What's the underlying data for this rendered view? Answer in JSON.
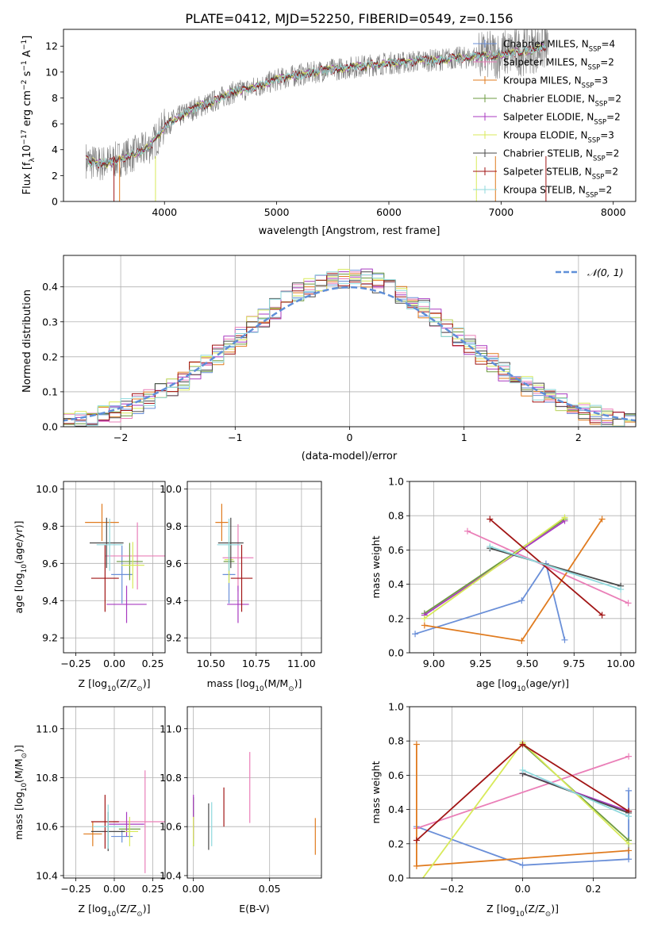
{
  "figure": {
    "title": "PLATE=0412, MJD=52250, FIBERID=0549, z=0.156"
  },
  "colors": [
    "#6a8fd8",
    "#ea7fb8",
    "#e07b1f",
    "#6e9b40",
    "#a83ac0",
    "#d8ea5a",
    "#4a4a4a",
    "#a11515",
    "#8fd9dd"
  ],
  "chart_data": [
    {
      "id": "spectrum",
      "type": "line",
      "xlabel": "wavelength [Angstrom, rest frame]",
      "ylabel": "Flux [f",
      "ylabel_sub": "λ",
      "ylabel_mid": "10",
      "ylabel_exp1": "−17",
      "ylabel_mid2": " erg cm",
      "ylabel_exp2": "−2",
      "ylabel_mid3": " s",
      "ylabel_exp3": "−1",
      "ylabel_mid4": " A",
      "ylabel_exp4": "−1",
      "ylabel_end": "]",
      "xlim": [
        3100,
        8200
      ],
      "ylim": [
        0,
        13.3
      ],
      "xticks": [
        "4000",
        "5000",
        "6000",
        "7000",
        "8000"
      ],
      "xtick_values": [
        4000,
        5000,
        6000,
        7000,
        8000
      ],
      "yticks": [
        "0",
        "2",
        "4",
        "6",
        "8",
        "10",
        "12"
      ],
      "ytick_values": [
        0,
        2,
        4,
        6,
        8,
        10,
        12
      ],
      "continuum": {
        "x": [
          3300,
          3400,
          3500,
          3600,
          3700,
          3800,
          3900,
          4000,
          4100,
          4200,
          4300,
          4400,
          4500,
          4600,
          4700,
          4800,
          4900,
          5000,
          5100,
          5200,
          5300,
          5400,
          5500,
          5600,
          5700,
          5800,
          5900,
          6000,
          6100,
          6200,
          6300,
          6400,
          6500,
          6600,
          6700,
          6800,
          6900,
          7000,
          7100,
          7200,
          7300,
          7400
        ],
        "y": [
          3.2,
          2.9,
          3.0,
          3.3,
          3.6,
          3.9,
          4.5,
          5.8,
          6.4,
          6.9,
          7.3,
          7.6,
          8.0,
          8.4,
          8.6,
          8.8,
          9.1,
          9.4,
          9.6,
          9.8,
          9.9,
          10.1,
          10.2,
          10.3,
          10.4,
          10.5,
          10.6,
          10.7,
          10.7,
          10.8,
          10.9,
          10.9,
          11.0,
          11.1,
          11.1,
          11.2,
          11.3,
          11.4,
          11.5,
          11.6,
          11.8,
          12.0
        ]
      },
      "series": [
        {
          "name": "Chabrier MILES, N",
          "sub": "SSP",
          "count": "=4"
        },
        {
          "name": "Salpeter MILES, N",
          "sub": "SSP",
          "count": "=2"
        },
        {
          "name": "Kroupa MILES, N",
          "sub": "SSP",
          "count": "=3"
        },
        {
          "name": "Chabrier ELODIE, N",
          "sub": "SSP",
          "count": "=2"
        },
        {
          "name": "Salpeter ELODIE, N",
          "sub": "SSP",
          "count": "=2"
        },
        {
          "name": "Kroupa ELODIE, N",
          "sub": "SSP",
          "count": "=3"
        },
        {
          "name": "Chabrier STELIB, N",
          "sub": "SSP",
          "count": "=2"
        },
        {
          "name": "Salpeter STELIB, N",
          "sub": "SSP",
          "count": "=2"
        },
        {
          "name": "Kroupa STELIB, N",
          "sub": "SSP",
          "count": "=2"
        }
      ],
      "legend_position": "upper-right"
    },
    {
      "id": "residuals",
      "type": "step-histogram",
      "xlabel": "(data-model)/error",
      "ylabel": "Normed distribution",
      "xlim": [
        -2.5,
        2.5
      ],
      "ylim": [
        0,
        0.49
      ],
      "xticks": [
        "−2",
        "−1",
        "0",
        "1",
        "2"
      ],
      "xtick_values": [
        -2,
        -1,
        0,
        1,
        2
      ],
      "yticks": [
        "0.0",
        "0.1",
        "0.2",
        "0.3",
        "0.4"
      ],
      "ytick_values": [
        0,
        0.1,
        0.2,
        0.3,
        0.4
      ],
      "bin_width": 0.1,
      "normal_label": "𝒩(0, 1)",
      "grid": true,
      "legend_position": "upper-right"
    },
    {
      "id": "age-vs-Z",
      "type": "errorbar",
      "xlabel": "Z [log",
      "xlabel_sub": "10",
      "xlabel_mid": "(Z/Z",
      "xlabel_sub2": "⊙",
      "xlabel_end": ")]",
      "ylabel": "age  [log",
      "ylabel_sub": "10",
      "ylabel_end": "(age/yr)]",
      "xlim": [
        -0.33,
        0.33
      ],
      "ylim": [
        9.12,
        10.04
      ],
      "xticks": [
        "−0.25",
        "0.00",
        "0.25"
      ],
      "xtick_values": [
        -0.25,
        0,
        0.25
      ],
      "yticks": [
        "9.2",
        "9.4",
        "9.6",
        "9.8",
        "10.0"
      ],
      "ytick_values": [
        9.2,
        9.4,
        9.6,
        9.8,
        10.0
      ],
      "points": [
        {
          "x": 0.05,
          "y": 9.54,
          "xerr": 0.14,
          "yerr": 0.31
        },
        {
          "x": 0.15,
          "y": 9.64,
          "xerr": 0.42,
          "yerr": 0.36
        },
        {
          "x": -0.08,
          "y": 9.82,
          "xerr": 0.22,
          "yerr": 0.2
        },
        {
          "x": 0.1,
          "y": 9.61,
          "xerr": 0.17,
          "yerr": 0.2
        },
        {
          "x": 0.08,
          "y": 9.38,
          "xerr": 0.26,
          "yerr": 0.2
        },
        {
          "x": 0.12,
          "y": 9.59,
          "xerr": 0.15,
          "yerr": 0.25
        },
        {
          "x": -0.05,
          "y": 9.71,
          "xerr": 0.22,
          "yerr": 0.27
        },
        {
          "x": -0.06,
          "y": 9.52,
          "xerr": 0.18,
          "yerr": 0.36
        },
        {
          "x": -0.03,
          "y": 9.7,
          "xerr": 0.17,
          "yerr": 0.28
        }
      ],
      "grid": true
    },
    {
      "id": "age-vs-mass",
      "type": "errorbar",
      "xlabel": "mass [log",
      "xlabel_sub": "10",
      "xlabel_mid": "(M/M",
      "xlabel_sub2": "⊙",
      "xlabel_end": ")]",
      "xlim": [
        10.37,
        11.11
      ],
      "ylim": [
        9.12,
        10.04
      ],
      "xticks": [
        "10.50",
        "10.75",
        "11.00"
      ],
      "xtick_values": [
        10.5,
        10.75,
        11.0
      ],
      "yticks": [
        "9.2",
        "9.4",
        "9.6",
        "9.8",
        "10.0"
      ],
      "ytick_values": [
        9.2,
        9.4,
        9.6,
        9.8,
        10.0
      ],
      "points": [
        {
          "x": 10.6,
          "y": 9.54,
          "xerr": 0.07,
          "yerr": 0.31
        },
        {
          "x": 10.65,
          "y": 9.63,
          "xerr": 0.17,
          "yerr": 0.36
        },
        {
          "x": 10.56,
          "y": 9.82,
          "xerr": 0.07,
          "yerr": 0.2
        },
        {
          "x": 10.6,
          "y": 9.61,
          "xerr": 0.06,
          "yerr": 0.2
        },
        {
          "x": 10.65,
          "y": 9.38,
          "xerr": 0.12,
          "yerr": 0.2
        },
        {
          "x": 10.6,
          "y": 9.62,
          "xerr": 0.05,
          "yerr": 0.25
        },
        {
          "x": 10.61,
          "y": 9.71,
          "xerr": 0.14,
          "yerr": 0.27
        },
        {
          "x": 10.67,
          "y": 9.52,
          "xerr": 0.12,
          "yerr": 0.36
        },
        {
          "x": 10.6,
          "y": 9.7,
          "xerr": 0.13,
          "yerr": 0.28
        }
      ],
      "grid": true
    },
    {
      "id": "weight-vs-age",
      "type": "line",
      "xlabel": "age  [log",
      "xlabel_sub": "10",
      "xlabel_end": "(age/yr)]",
      "ylabel": "mass weight",
      "xlim": [
        8.87,
        10.08
      ],
      "ylim": [
        0,
        1.0
      ],
      "xticks": [
        "9.00",
        "9.25",
        "9.50",
        "9.75",
        "10.00"
      ],
      "xtick_values": [
        9.0,
        9.25,
        9.5,
        9.75,
        10.0
      ],
      "yticks": [
        "0.0",
        "0.2",
        "0.4",
        "0.6",
        "0.8",
        "1.0"
      ],
      "ytick_values": [
        0,
        0.2,
        0.4,
        0.6,
        0.8,
        1.0
      ],
      "series": [
        {
          "x": [
            8.9,
            9.47,
            9.6,
            9.7
          ],
          "y": [
            0.11,
            0.305,
            0.52,
            0.075
          ]
        },
        {
          "x": [
            9.18,
            10.04
          ],
          "y": [
            0.71,
            0.29
          ]
        },
        {
          "x": [
            8.95,
            9.47,
            9.9
          ],
          "y": [
            0.16,
            0.07,
            0.78
          ]
        },
        {
          "x": [
            8.95,
            9.7
          ],
          "y": [
            0.23,
            0.78
          ]
        },
        {
          "x": [
            8.95,
            9.7
          ],
          "y": [
            0.22,
            0.77
          ]
        },
        {
          "x": [
            8.95,
            9.7
          ],
          "y": [
            0.2,
            0.79
          ]
        },
        {
          "x": [
            9.3,
            10.0
          ],
          "y": [
            0.61,
            0.39
          ]
        },
        {
          "x": [
            9.3,
            9.9
          ],
          "y": [
            0.78,
            0.22
          ]
        },
        {
          "x": [
            9.3,
            10.0
          ],
          "y": [
            0.62,
            0.37
          ]
        }
      ],
      "grid": true
    },
    {
      "id": "mass-vs-Z",
      "type": "errorbar",
      "xlabel": "Z [log",
      "xlabel_sub": "10",
      "xlabel_mid": "(Z/Z",
      "xlabel_sub2": "⊙",
      "xlabel_end": ")]",
      "ylabel": "mass [log",
      "ylabel_sub": "10",
      "ylabel_mid": "(M/M",
      "ylabel_sub2": "⊙",
      "ylabel_end": ")]",
      "xlim": [
        -0.33,
        0.33
      ],
      "ylim": [
        10.39,
        11.09
      ],
      "xticks": [
        "−0.25",
        "0.00",
        "0.25"
      ],
      "xtick_values": [
        -0.25,
        0,
        0.25
      ],
      "yticks": [
        "10.4",
        "10.6",
        "10.8",
        "11.0"
      ],
      "ytick_values": [
        10.4,
        10.6,
        10.8,
        11.0
      ],
      "points": [
        {
          "x": 0.05,
          "y": 10.56,
          "xerr": 0.14,
          "yerr": 0.05
        },
        {
          "x": 0.2,
          "y": 10.62,
          "xerr": 0.42,
          "yerr": 0.42
        },
        {
          "x": -0.14,
          "y": 10.57,
          "xerr": 0.12,
          "yerr": 0.1
        },
        {
          "x": 0.1,
          "y": 10.59,
          "xerr": 0.14,
          "yerr": 0.07
        },
        {
          "x": 0.08,
          "y": 10.61,
          "xerr": 0.23,
          "yerr": 0.1
        },
        {
          "x": 0.1,
          "y": 10.58,
          "xerr": 0.11,
          "yerr": 0.12
        },
        {
          "x": -0.04,
          "y": 10.58,
          "xerr": 0.22,
          "yerr": 0.16
        },
        {
          "x": -0.06,
          "y": 10.62,
          "xerr": 0.18,
          "yerr": 0.22
        },
        {
          "x": -0.04,
          "y": 10.6,
          "xerr": 0.2,
          "yerr": 0.18
        }
      ],
      "grid": true
    },
    {
      "id": "mass-vs-EBV",
      "type": "errorbar",
      "xlabel": "E(B-V)",
      "xlim": [
        -0.004,
        0.084
      ],
      "ylim": [
        10.39,
        11.09
      ],
      "xticks": [
        "0.00",
        "0.05"
      ],
      "xtick_values": [
        0,
        0.05
      ],
      "yticks": [
        "10.4",
        "10.6",
        "10.8",
        "11.0"
      ],
      "ytick_values": [
        10.4,
        10.6,
        10.8,
        11.0
      ],
      "points": [
        {
          "x": 0.0,
          "y": 10.62,
          "yerr": 0.2
        },
        {
          "x": 0.037,
          "y": 10.76,
          "yerr": 0.29
        },
        {
          "x": 0.08,
          "y": 10.56,
          "yerr": 0.15
        },
        {
          "x": 0.0,
          "y": 10.62,
          "yerr": 0.2
        },
        {
          "x": 0.0,
          "y": 10.64,
          "yerr": 0.18
        },
        {
          "x": 0.0,
          "y": 10.58,
          "yerr": 0.12
        },
        {
          "x": 0.01,
          "y": 10.6,
          "yerr": 0.19
        },
        {
          "x": 0.02,
          "y": 10.68,
          "yerr": 0.16
        },
        {
          "x": 0.012,
          "y": 10.61,
          "yerr": 0.18
        }
      ],
      "grid": true
    },
    {
      "id": "weight-vs-Z",
      "type": "line",
      "xlabel": "Z [log",
      "xlabel_sub": "10",
      "xlabel_mid": "(Z/Z",
      "xlabel_sub2": "⊙",
      "xlabel_end": ")]",
      "ylabel": "mass weight",
      "xlim": [
        -0.32,
        0.32
      ],
      "ylim": [
        0,
        1.0
      ],
      "xticks": [
        "−0.2",
        "0.0",
        "0.2"
      ],
      "xtick_values": [
        -0.2,
        0,
        0.2
      ],
      "yticks": [
        "0.0",
        "0.2",
        "0.4",
        "0.6",
        "0.8",
        "1.0"
      ],
      "ytick_values": [
        0,
        0.2,
        0.4,
        0.6,
        0.8,
        1.0
      ],
      "series": [
        {
          "x": [
            -0.3,
            0.0,
            0.3,
            0.3
          ],
          "y": [
            0.3,
            0.075,
            0.11,
            0.51
          ]
        },
        {
          "x": [
            -0.3,
            0.3
          ],
          "y": [
            0.29,
            0.71
          ]
        },
        {
          "x": [
            -0.3,
            -0.3,
            0.3
          ],
          "y": [
            0.78,
            0.07,
            0.16
          ]
        },
        {
          "x": [
            0.0,
            0.3
          ],
          "y": [
            0.78,
            0.22
          ]
        },
        {
          "x": [
            0.0,
            0.3
          ],
          "y": [
            0.61,
            0.39
          ]
        },
        {
          "x": [
            -0.3,
            0.0,
            0.3
          ],
          "y": [
            -0.05,
            0.79,
            0.2
          ]
        },
        {
          "x": [
            0.0,
            0.3
          ],
          "y": [
            0.61,
            0.38
          ]
        },
        {
          "x": [
            -0.3,
            0.0,
            0.3
          ],
          "y": [
            0.22,
            0.78,
            0.39
          ]
        },
        {
          "x": [
            0.0,
            0.3
          ],
          "y": [
            0.63,
            0.36
          ]
        }
      ],
      "grid": true
    }
  ]
}
